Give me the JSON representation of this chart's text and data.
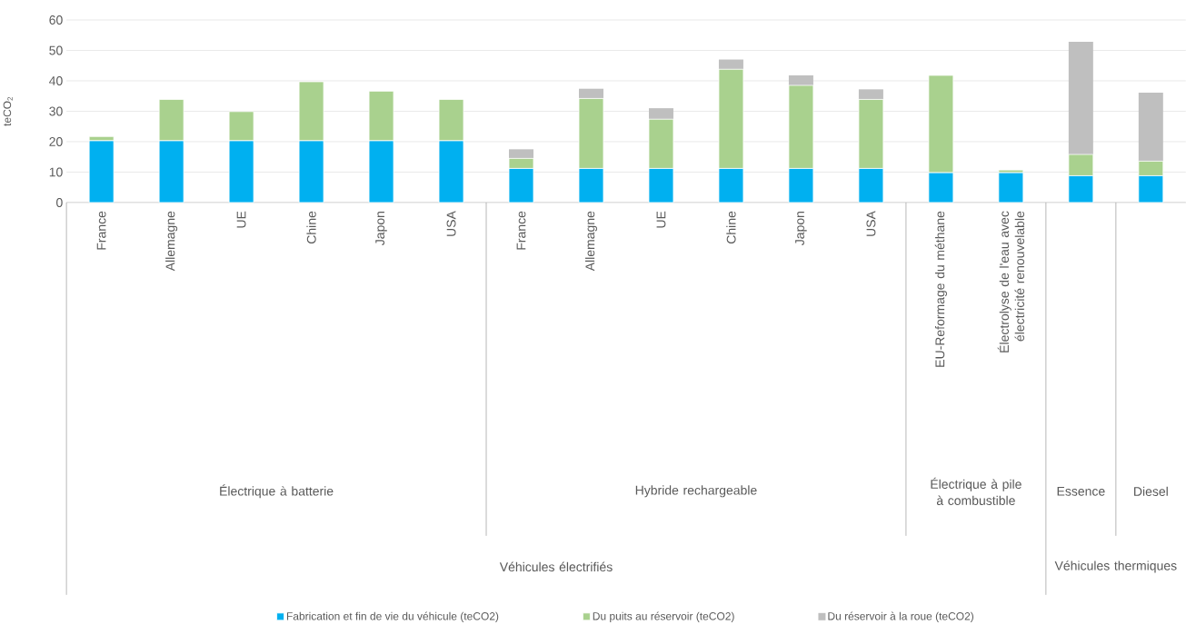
{
  "chart_data": {
    "type": "bar",
    "stacked": true,
    "ylabel": "teCO$_{2}$",
    "categories": [
      "France",
      "Allemagne",
      "UE",
      "Chine",
      "Japon",
      "USA",
      "France",
      "Allemagne",
      "UE",
      "Chine",
      "Japon",
      "USA",
      "EU-Reformage du méthane",
      "Électrolyse de l'eau avec électricité renouvelable",
      null,
      null
    ],
    "series": [
      {
        "name": "Fabrication et fin de vie du véhicule (teCO2)",
        "color": "#00b0f0",
        "values": [
          20.3,
          20.3,
          20.3,
          20.3,
          20.3,
          20.3,
          11.2,
          11.2,
          11.2,
          11.2,
          11.2,
          11.2,
          9.8,
          9.8,
          8.8,
          8.8
        ]
      },
      {
        "name": "Du puits au réservoir (teCO2)",
        "color": "#a9d18e",
        "values": [
          1.4,
          13.6,
          9.6,
          19.4,
          16.3,
          13.6,
          3.3,
          23.0,
          16.2,
          32.6,
          27.3,
          22.7,
          32.0,
          0.9,
          7.0,
          4.8
        ]
      },
      {
        "name": "Du réservoir à la roue (teCO2)",
        "color": "#bfbfbf",
        "values": [
          null,
          null,
          null,
          null,
          null,
          null,
          3.0,
          3.2,
          3.6,
          3.2,
          3.3,
          3.3,
          null,
          null,
          37.0,
          22.5
        ]
      }
    ],
    "ylim": [
      0,
      60
    ],
    "yticks": [
      0,
      10,
      20,
      30,
      40,
      50,
      60
    ],
    "grid": "y",
    "legend": "bottom",
    "annotations": [
      "Électrique à batterie",
      "Hybride rechargeable",
      "Électrique à pile à combustible",
      "Essence",
      "Diesel",
      "Véhicules électrifiés",
      "Véhicules thermiques"
    ]
  }
}
